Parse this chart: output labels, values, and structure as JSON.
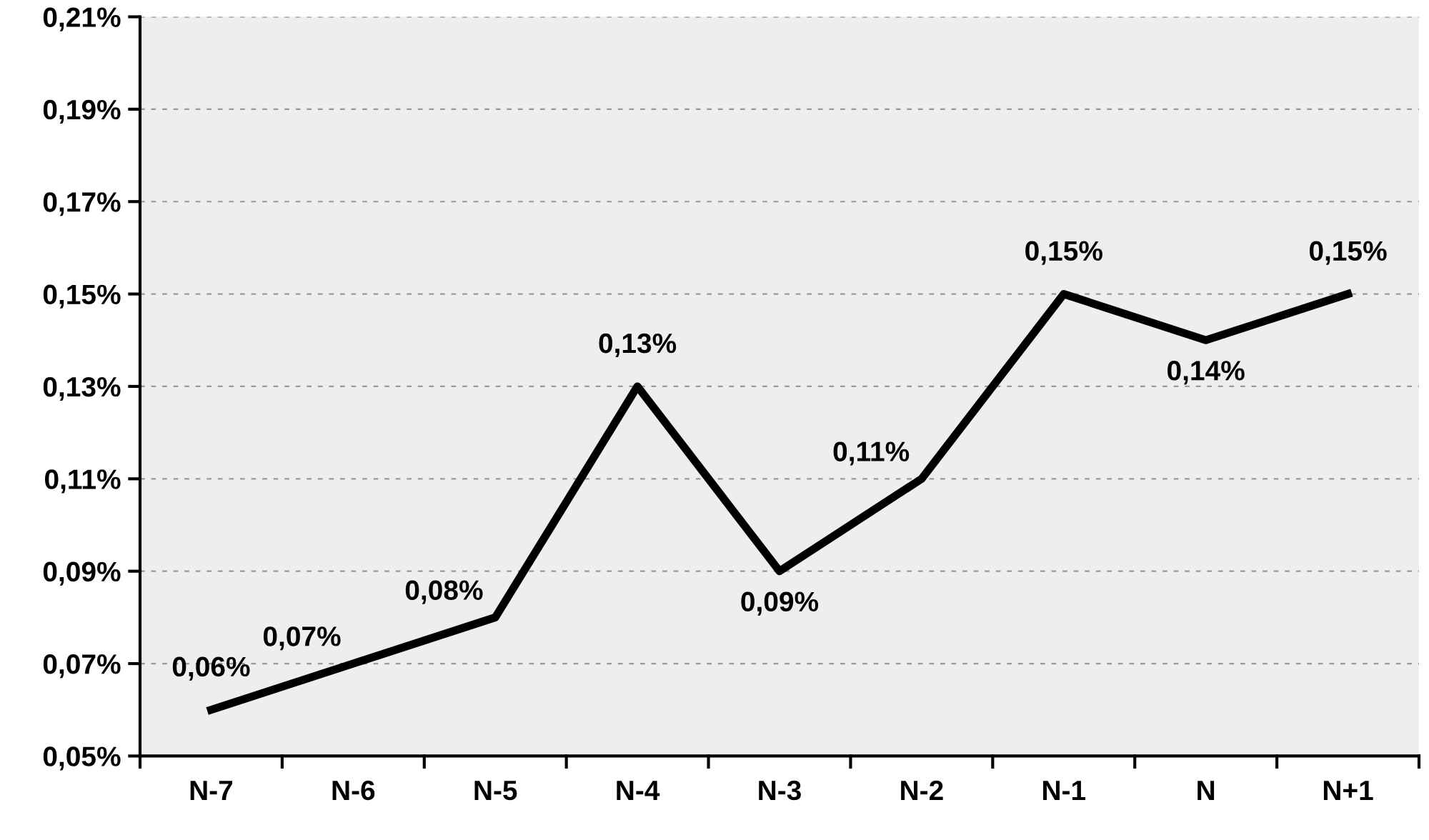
{
  "chart_data": {
    "type": "line",
    "categories": [
      "N-7",
      "N-6",
      "N-5",
      "N-4",
      "N-3",
      "N-2",
      "N-1",
      "N",
      "N+1"
    ],
    "values": [
      0.06,
      0.07,
      0.08,
      0.13,
      0.09,
      0.11,
      0.15,
      0.14,
      0.15
    ],
    "value_labels": [
      "0,06%",
      "0,07%",
      "0,08%",
      "0,13%",
      "0,09%",
      "0,11%",
      "0,15%",
      "0,14%",
      "0,15%"
    ],
    "color": "#000000",
    "ylim": [
      0.05,
      0.21
    ],
    "yticks": [
      {
        "value": 0.05,
        "label": "0,05%"
      },
      {
        "value": 0.07,
        "label": "0,07%"
      },
      {
        "value": 0.09,
        "label": "0,09%"
      },
      {
        "value": 0.11,
        "label": "0,11%"
      },
      {
        "value": 0.13,
        "label": "0,13%"
      },
      {
        "value": 0.15,
        "label": "0,15%"
      },
      {
        "value": 0.17,
        "label": "0,17%"
      },
      {
        "value": 0.19,
        "label": "0,19%"
      },
      {
        "value": 0.21,
        "label": "0,21%"
      }
    ],
    "grid": "y",
    "marker": "none",
    "line_style": "solid"
  }
}
